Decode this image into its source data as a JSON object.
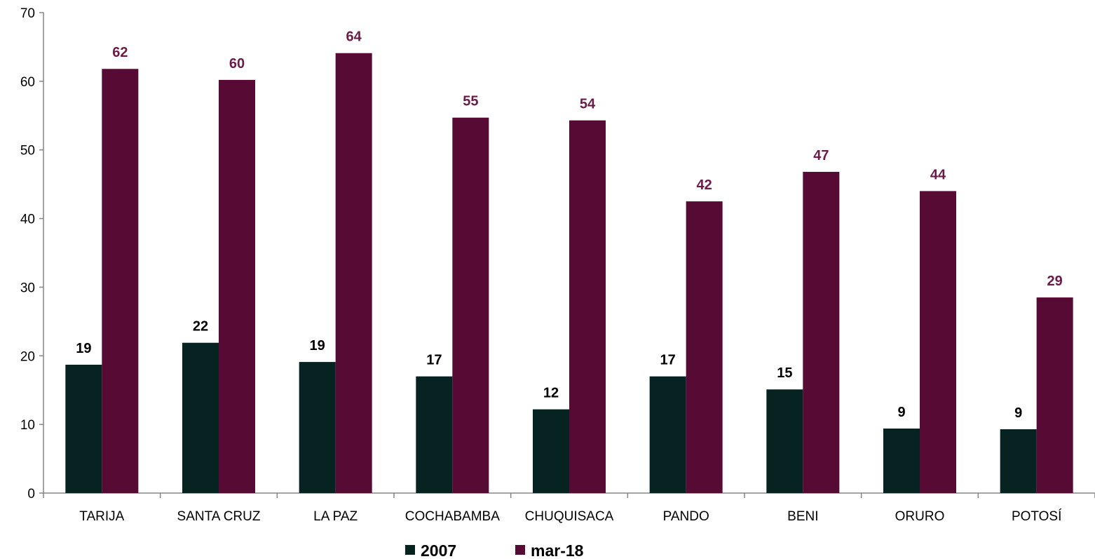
{
  "chart_data": {
    "type": "bar",
    "categories": [
      "TARIJA",
      "SANTA CRUZ",
      "LA PAZ",
      "COCHABAMBA",
      "CHUQUISACA",
      "PANDO",
      "BENI",
      "ORURO",
      "POTOSÍ"
    ],
    "series": [
      {
        "name": "2007",
        "color": "#062221",
        "values": [
          18.7,
          21.9,
          19.1,
          17.0,
          12.2,
          17.0,
          15.1,
          9.4,
          9.3
        ],
        "labels": [
          "19",
          "22",
          "19",
          "17",
          "12",
          "17",
          "15",
          "9",
          "9"
        ],
        "label_color": "#000000"
      },
      {
        "name": "mar-18",
        "color": "#570A33",
        "values": [
          61.8,
          60.2,
          64.1,
          54.7,
          54.3,
          42.5,
          46.8,
          44.0,
          28.5
        ],
        "labels": [
          "62",
          "60",
          "64",
          "55",
          "54",
          "42",
          "47",
          "44",
          "29"
        ],
        "label_color": "#6B1B47"
      }
    ],
    "ylim": [
      0,
      70
    ],
    "yticks": [
      "0",
      "10",
      "20",
      "30",
      "40",
      "50",
      "60",
      "70"
    ],
    "ytick_values": [
      0,
      10,
      20,
      30,
      40,
      50,
      60,
      70
    ],
    "grid": false,
    "legend_position": "bottom-center",
    "title": "",
    "xlabel": "",
    "ylabel": ""
  }
}
